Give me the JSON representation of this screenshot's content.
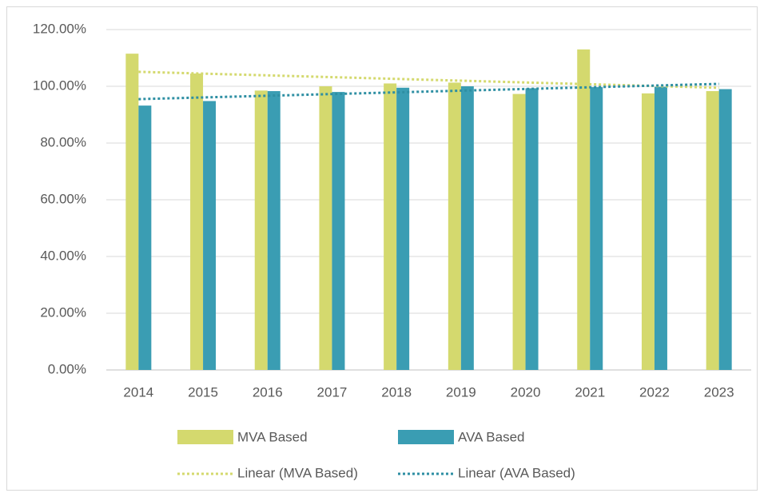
{
  "chart_data": {
    "type": "bar",
    "categories": [
      "2014",
      "2015",
      "2016",
      "2017",
      "2018",
      "2019",
      "2020",
      "2021",
      "2022",
      "2023"
    ],
    "series": [
      {
        "name": "MVA Based",
        "color": "#d4d96e",
        "values": [
          111.5,
          104.5,
          98.5,
          100,
          101,
          101.3,
          97.3,
          113,
          97.5,
          98.3
        ]
      },
      {
        "name": "AVA Based",
        "color": "#3a9db3",
        "values": [
          93.2,
          94.8,
          98.3,
          98,
          99.5,
          100,
          99.3,
          99.7,
          99.8,
          99
        ]
      }
    ],
    "trendlines": [
      {
        "name": "Linear (MVA Based)",
        "color": "#d4d96e"
      },
      {
        "name": "Linear (AVA Based)",
        "color": "#2e8fa3"
      }
    ],
    "ylim": [
      0,
      120
    ],
    "yticks": [
      {
        "value": 0,
        "label": "0.00%"
      },
      {
        "value": 20,
        "label": "20.00%"
      },
      {
        "value": 40,
        "label": "40.00%"
      },
      {
        "value": 60,
        "label": "60.00%"
      },
      {
        "value": 80,
        "label": "80.00%"
      },
      {
        "value": 100,
        "label": "100.00%"
      },
      {
        "value": 120,
        "label": "120.00%"
      }
    ],
    "grid": true
  }
}
